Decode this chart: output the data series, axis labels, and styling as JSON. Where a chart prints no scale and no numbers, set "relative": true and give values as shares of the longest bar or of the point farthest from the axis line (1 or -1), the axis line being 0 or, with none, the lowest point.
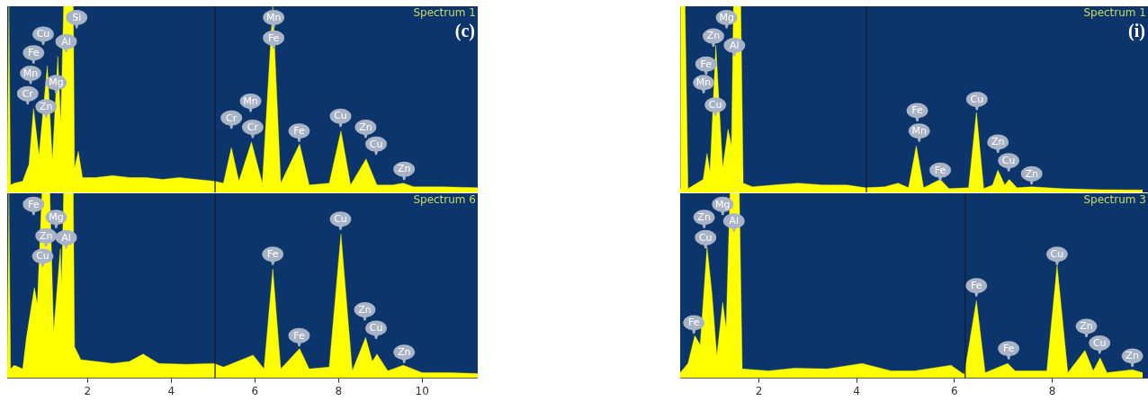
{
  "chart_data": [
    {
      "type": "area",
      "relative": true,
      "xlim": [
        0.08,
        11.33
      ],
      "tick_labels": false,
      "series": [
        {
          "color": "#ffff00",
          "x": [
            0.08,
            0.12,
            0.16,
            0.25,
            0.45,
            0.6,
            0.71,
            0.84,
            1.04,
            1.16,
            1.29,
            1.36,
            1.43,
            1.66,
            1.69,
            1.78,
            1.88,
            2.2,
            2.6,
            3.0,
            3.4,
            3.8,
            4.2,
            4.6,
            5.03,
            5.25,
            5.44,
            5.62,
            5.92,
            6.18,
            6.43,
            6.62,
            7.07,
            7.3,
            7.78,
            8.06,
            8.29,
            8.66,
            8.92,
            9.3,
            9.55,
            9.8,
            10.5,
            11.33
          ],
          "values": [
            0.05,
            1,
            0.04,
            0.05,
            0.06,
            0.15,
            0.45,
            0.2,
            0.68,
            0.17,
            0.73,
            0.37,
            1,
            1,
            0.13,
            0.22,
            0.08,
            0.08,
            0.09,
            0.08,
            0.08,
            0.07,
            0.08,
            0.07,
            0.06,
            0.05,
            0.24,
            0.06,
            0.27,
            0.05,
            1,
            0.05,
            0.26,
            0.04,
            0.05,
            0.33,
            0.04,
            0.18,
            0.04,
            0.04,
            0.05,
            0.03,
            0.03,
            0.025
          ]
        }
      ],
      "ref_lines": [
        {
          "axis": "x",
          "value": 5.05,
          "color": "#111a33"
        }
      ],
      "annotations": [
        "Spectrum 1",
        "(c)",
        {
          "text": "Si",
          "x": 1.74,
          "y": 0.94
        },
        {
          "text": "Cu",
          "x": 0.94,
          "y": 0.85
        },
        {
          "text": "Al",
          "x": 1.49,
          "y": 0.81
        },
        {
          "text": "Fe",
          "x": 0.71,
          "y": 0.75
        },
        {
          "text": "Mn",
          "x": 0.64,
          "y": 0.64
        },
        {
          "text": "Mg",
          "x": 1.25,
          "y": 0.59
        },
        {
          "text": "Cr",
          "x": 0.57,
          "y": 0.53
        },
        {
          "text": "Zn",
          "x": 1.01,
          "y": 0.46
        },
        {
          "text": "Mn",
          "x": 6.45,
          "y": 0.94
        },
        {
          "text": "Fe",
          "x": 6.45,
          "y": 0.83
        },
        {
          "text": "Mn",
          "x": 5.9,
          "y": 0.49
        },
        {
          "text": "Cr",
          "x": 5.44,
          "y": 0.4
        },
        {
          "text": "Cr",
          "x": 5.95,
          "y": 0.35
        },
        {
          "text": "Fe",
          "x": 7.06,
          "y": 0.33
        },
        {
          "text": "Cu",
          "x": 8.05,
          "y": 0.41
        },
        {
          "text": "Zn",
          "x": 8.65,
          "y": 0.35
        },
        {
          "text": "Cu",
          "x": 8.9,
          "y": 0.26
        },
        {
          "text": "Zn",
          "x": 9.57,
          "y": 0.125
        }
      ]
    },
    {
      "type": "area",
      "relative": true,
      "xlim": [
        0.08,
        11.33
      ],
      "xticks": [
        2,
        4,
        6,
        8,
        10
      ],
      "tick_labels": "x",
      "series": [
        {
          "color": "#ffff00",
          "x": [
            0.08,
            0.12,
            0.16,
            0.25,
            0.45,
            0.54,
            0.73,
            0.8,
            0.91,
            1.1,
            1.19,
            1.35,
            1.38,
            1.43,
            1.66,
            1.69,
            1.84,
            2.2,
            2.6,
            3.0,
            3.33,
            3.7,
            4.36,
            5.03,
            5.25,
            5.96,
            6.22,
            6.43,
            6.62,
            7.07,
            7.3,
            7.78,
            8.06,
            8.33,
            8.65,
            8.81,
            8.92,
            9.18,
            9.55,
            10.0,
            10.6,
            11.33
          ],
          "values": [
            0.05,
            1,
            0.05,
            0.07,
            0.05,
            0.22,
            0.49,
            0.4,
            1,
            1,
            0.25,
            0.7,
            0.5,
            1,
            1,
            0.17,
            0.1,
            0.09,
            0.08,
            0.09,
            0.13,
            0.08,
            0.075,
            0.08,
            0.06,
            0.125,
            0.05,
            0.59,
            0.05,
            0.16,
            0.05,
            0.06,
            0.78,
            0.04,
            0.22,
            0.09,
            0.13,
            0.04,
            0.07,
            0.03,
            0.03,
            0.025
          ]
        }
      ],
      "ref_lines": [
        {
          "axis": "x",
          "value": 5.05,
          "color": "#111a33"
        }
      ],
      "annotations": [
        "Spectrum 6",
        {
          "text": "Fe",
          "x": 0.71,
          "y": 0.94
        },
        {
          "text": "Mg",
          "x": 1.25,
          "y": 0.87
        },
        {
          "text": "Zn",
          "x": 1.01,
          "y": 0.77
        },
        {
          "text": "Al",
          "x": 1.49,
          "y": 0.76
        },
        {
          "text": "Cu",
          "x": 0.93,
          "y": 0.66
        },
        {
          "text": "Fe",
          "x": 6.43,
          "y": 0.67
        },
        {
          "text": "Cu",
          "x": 8.05,
          "y": 0.86
        },
        {
          "text": "Zn",
          "x": 8.63,
          "y": 0.37
        },
        {
          "text": "Cu",
          "x": 8.9,
          "y": 0.27
        },
        {
          "text": "Fe",
          "x": 7.06,
          "y": 0.23
        },
        {
          "text": "Zn",
          "x": 9.57,
          "y": 0.14
        }
      ]
    },
    {
      "type": "area",
      "relative": true,
      "xlim": [
        0.39,
        9.96
      ],
      "tick_labels": false,
      "series": [
        {
          "color": "#ffff00",
          "x": [
            0.39,
            0.4,
            0.49,
            0.55,
            0.86,
            0.94,
            1.0,
            1.12,
            1.26,
            1.37,
            1.44,
            1.48,
            1.63,
            1.68,
            1.87,
            2.3,
            2.8,
            3.3,
            3.8,
            4.18,
            4.57,
            4.85,
            5.06,
            5.22,
            5.37,
            5.71,
            5.89,
            6.29,
            6.45,
            6.6,
            6.78,
            6.89,
            7.03,
            7.12,
            7.28,
            7.58,
            8.2,
            9.0,
            9.85
          ],
          "values": [
            0.02,
            1,
            1,
            0.02,
            0.07,
            0.21,
            0.11,
            0.79,
            0.13,
            0.34,
            0.25,
            1,
            1,
            0.05,
            0.03,
            0.04,
            0.05,
            0.04,
            0.04,
            0.025,
            0.03,
            0.05,
            0.025,
            0.25,
            0.025,
            0.07,
            0.02,
            0.025,
            0.43,
            0.02,
            0.04,
            0.12,
            0.04,
            0.07,
            0.025,
            0.03,
            0.02,
            0.015,
            0.013
          ]
        }
      ],
      "ref_lines": [
        {
          "axis": "x",
          "value": 4.2,
          "color": "#111a33"
        }
      ],
      "annotations": [
        "Spectrum 1",
        "(i)",
        {
          "text": "Mg",
          "x": 1.34,
          "y": 0.94
        },
        {
          "text": "Zn",
          "x": 1.07,
          "y": 0.84
        },
        {
          "text": "Al",
          "x": 1.5,
          "y": 0.79
        },
        {
          "text": "Fe",
          "x": 0.92,
          "y": 0.69
        },
        {
          "text": "Mn",
          "x": 0.87,
          "y": 0.59
        },
        {
          "text": "Cu",
          "x": 1.11,
          "y": 0.47
        },
        {
          "text": "Fe",
          "x": 5.24,
          "y": 0.44
        },
        {
          "text": "Mn",
          "x": 5.28,
          "y": 0.33
        },
        {
          "text": "Cu",
          "x": 6.46,
          "y": 0.5
        },
        {
          "text": "Fe",
          "x": 5.71,
          "y": 0.12
        },
        {
          "text": "Zn",
          "x": 6.89,
          "y": 0.27
        },
        {
          "text": "Cu",
          "x": 7.11,
          "y": 0.17
        },
        {
          "text": "Zn",
          "x": 7.58,
          "y": 0.1
        }
      ]
    },
    {
      "type": "area",
      "relative": true,
      "xlim": [
        0.39,
        9.96
      ],
      "xticks": [
        2,
        4,
        6,
        8
      ],
      "tick_labels": "x",
      "series": [
        {
          "color": "#ffff00",
          "x": [
            0.39,
            0.55,
            0.69,
            0.8,
            0.94,
            1.04,
            1.14,
            1.26,
            1.33,
            1.41,
            1.6,
            1.66,
            2.2,
            2.73,
            3.4,
            4.11,
            4.7,
            5.19,
            5.93,
            6.2,
            6.45,
            6.63,
            7.09,
            7.24,
            7.89,
            8.1,
            8.32,
            8.67,
            8.84,
            8.98,
            9.12,
            9.64,
            9.85
          ],
          "values": [
            0.03,
            0.08,
            0.23,
            0.18,
            0.71,
            0.46,
            0.12,
            0.41,
            0.27,
            1,
            1,
            0.05,
            0.04,
            0.054,
            0.05,
            0.08,
            0.04,
            0.04,
            0.07,
            0.02,
            0.42,
            0.03,
            0.08,
            0.04,
            0.04,
            0.61,
            0.03,
            0.15,
            0.04,
            0.11,
            0.03,
            0.046,
            0.03
          ]
        }
      ],
      "ref_lines": [
        {
          "axis": "x",
          "value": 6.22,
          "color": "#111a33"
        }
      ],
      "annotations": [
        "Spectrum 3",
        {
          "text": "Mg",
          "x": 1.26,
          "y": 0.94
        },
        {
          "text": "Zn",
          "x": 0.88,
          "y": 0.87
        },
        {
          "text": "Al",
          "x": 1.49,
          "y": 0.85
        },
        {
          "text": "Cu",
          "x": 0.91,
          "y": 0.76
        },
        {
          "text": "Fe",
          "x": 0.67,
          "y": 0.3
        },
        {
          "text": "Fe",
          "x": 6.45,
          "y": 0.5
        },
        {
          "text": "Cu",
          "x": 8.1,
          "y": 0.67
        },
        {
          "text": "Fe",
          "x": 7.11,
          "y": 0.16
        },
        {
          "text": "Zn",
          "x": 8.7,
          "y": 0.28
        },
        {
          "text": "Cu",
          "x": 8.97,
          "y": 0.19
        },
        {
          "text": "Zn",
          "x": 9.64,
          "y": 0.12
        }
      ]
    }
  ]
}
